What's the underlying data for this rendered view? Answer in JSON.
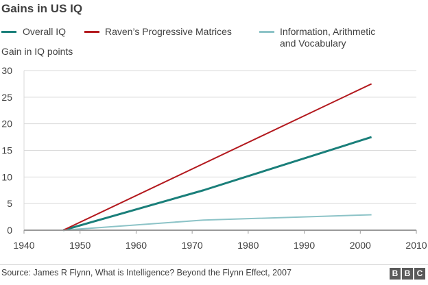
{
  "title": "Gains in US IQ",
  "source": "Source: James R Flynn, What is Intelligence? Beyond the Flynn Effect, 2007",
  "logo": {
    "text": "BBC",
    "letters": [
      "B",
      "B",
      "C"
    ],
    "color": "#5a5a5a"
  },
  "colors": {
    "overall": "#1a7f7a",
    "ravens": "#b3191e",
    "info": "#8cc3c7",
    "grid": "#d9d9d9",
    "axis": "#999999"
  },
  "chart_data": {
    "type": "line",
    "title": "Gains in US IQ",
    "xlabel": "",
    "ylabel": "Gain in IQ points",
    "xlim": [
      1940,
      2010
    ],
    "ylim": [
      0,
      30
    ],
    "x_ticks": [
      1940,
      1950,
      1960,
      1970,
      1980,
      1990,
      2000,
      2010
    ],
    "y_ticks": [
      0,
      5,
      10,
      15,
      20,
      25,
      30
    ],
    "grid": true,
    "legend": "top",
    "series": [
      {
        "name": "Overall IQ",
        "color": "#1a7f7a",
        "points": [
          [
            1947,
            0
          ],
          [
            1972,
            7.5
          ],
          [
            2002,
            17.5
          ]
        ]
      },
      {
        "name": "Raven’s Progressive Matrices",
        "color": "#b3191e",
        "points": [
          [
            1947,
            0
          ],
          [
            2002,
            27.5
          ]
        ]
      },
      {
        "name": "Information, Arithmetic and Vocabulary",
        "legend_lines": [
          "Information, Arithmetic",
          "and Vocabulary"
        ],
        "color": "#8cc3c7",
        "points": [
          [
            1947,
            0
          ],
          [
            1972,
            1.9
          ],
          [
            2002,
            2.9
          ]
        ]
      }
    ]
  }
}
